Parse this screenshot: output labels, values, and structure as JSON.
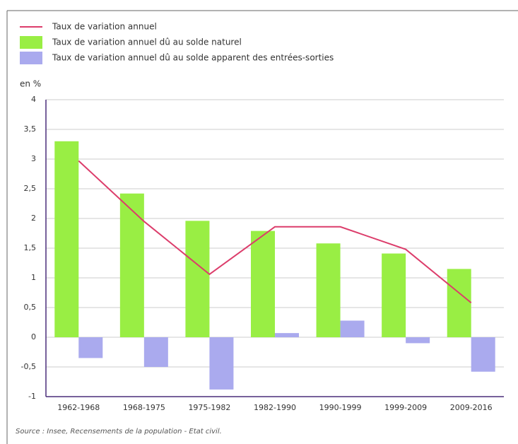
{
  "chart_data": {
    "type": "bar",
    "ylabel": "en %",
    "categories": [
      "1962-1968",
      "1968-1975",
      "1975-1982",
      "1982-1990",
      "1990-1999",
      "1999-2009",
      "2009-2016"
    ],
    "series": [
      {
        "name": "Taux de variation annuel",
        "type": "line",
        "color": "#dc3d6b",
        "values": [
          2.97,
          1.95,
          1.06,
          1.86,
          1.86,
          1.48,
          0.58
        ]
      },
      {
        "name": "Taux de variation annuel dû au solde naturel",
        "type": "bar",
        "color": "#99ee44",
        "values": [
          3.3,
          2.42,
          1.96,
          1.79,
          1.58,
          1.41,
          1.15
        ]
      },
      {
        "name": "Taux de variation annuel dû au solde apparent des entrées-sorties",
        "type": "bar",
        "color": "#aaaaee",
        "values": [
          -0.35,
          -0.5,
          -0.88,
          0.07,
          0.28,
          -0.1,
          -0.58
        ]
      }
    ],
    "ylim": [
      -1,
      4
    ],
    "yticks": [
      -1,
      {
        "value": -0.5,
        "label": "-0,5"
      },
      0,
      {
        "value": 0.5,
        "label": "0,5"
      },
      1,
      {
        "value": 1.5,
        "label": "1,5"
      },
      2,
      {
        "value": 2.5,
        "label": "2,5"
      },
      3,
      {
        "value": 3.5,
        "label": "3,5"
      },
      4
    ],
    "grid": true,
    "source": "Source : Insee, Recensements de la population - Etat civil."
  }
}
